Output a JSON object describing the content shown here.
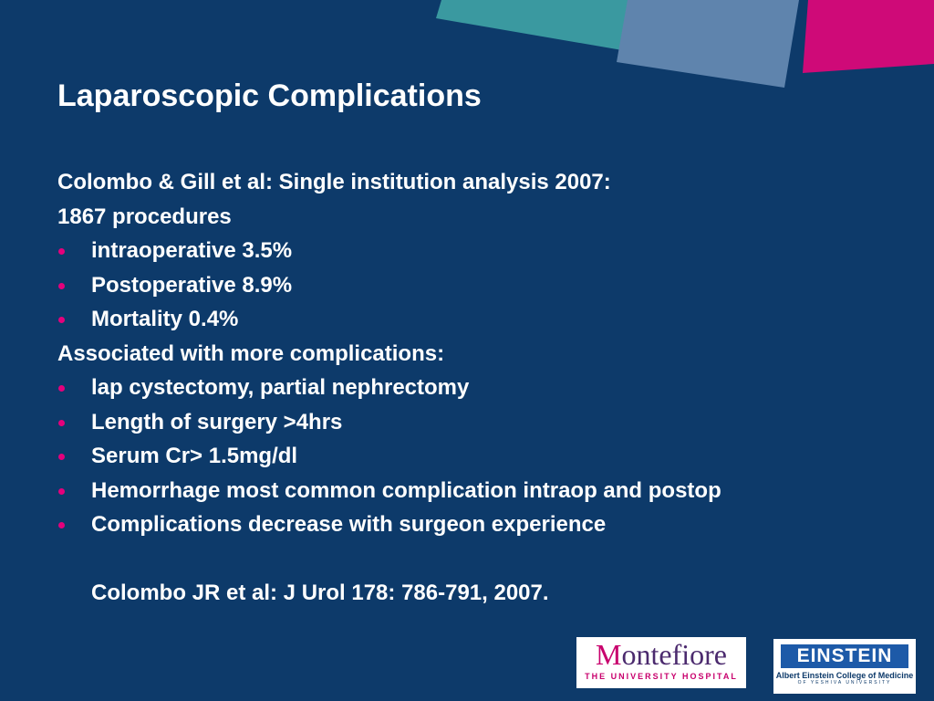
{
  "title": "Laparoscopic Complications",
  "lines": [
    {
      "text": "Colombo & Gill et al:  Single institution analysis 2007:",
      "bullet": false
    },
    {
      "text": "1867 procedures",
      "bullet": false
    },
    {
      "text": "intraoperative 3.5%",
      "bullet": true
    },
    {
      "text": "Postoperative 8.9%",
      "bullet": true
    },
    {
      "text": "Mortality 0.4%",
      "bullet": true
    },
    {
      "text": "Associated with more complications:",
      "bullet": false
    },
    {
      "text": "lap cystectomy, partial nephrectomy",
      "bullet": true
    },
    {
      "text": "Length of surgery >4hrs",
      "bullet": true
    },
    {
      "text": "Serum Cr> 1.5mg/dl",
      "bullet": true
    },
    {
      "text": "Hemorrhage most common complication intraop and postop",
      "bullet": true
    },
    {
      "text": "Complications decrease with surgeon experience",
      "bullet": true
    }
  ],
  "citation": "Colombo JR et al: J Urol 178: 786-791, 2007.",
  "logos": {
    "montefiore": {
      "name": "Montefiore",
      "subtitle": "THE UNIVERSITY HOSPITAL"
    },
    "einstein": {
      "name": "EINSTEIN",
      "subtitle": "Albert Einstein College of Medicine",
      "subtitle2": "OF YESHIVA UNIVERSITY"
    }
  }
}
